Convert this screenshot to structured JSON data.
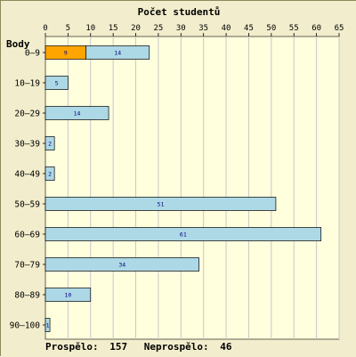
{
  "chart_data": {
    "type": "bar",
    "orientation": "horizontal",
    "stacked": true,
    "title": "Počet studentů",
    "ylabel": "Body",
    "xlabel": "",
    "xlim": [
      0,
      65
    ],
    "xticks": [
      0,
      5,
      10,
      15,
      20,
      25,
      30,
      35,
      40,
      45,
      50,
      55,
      60,
      65
    ],
    "grid": true,
    "categories": [
      "0–9",
      "10–19",
      "20–29",
      "30–39",
      "40–49",
      "50–59",
      "60–69",
      "70–79",
      "80–89",
      "90–100"
    ],
    "series": [
      {
        "values": [
          9,
          0,
          0,
          0,
          0,
          0,
          0,
          0,
          0,
          0
        ],
        "labels": [
          "9",
          "",
          "",
          "",
          "",
          "",
          "",
          "",
          "",
          ""
        ]
      },
      {
        "values": [
          14,
          5,
          14,
          2,
          2,
          51,
          61,
          34,
          10,
          1
        ],
        "labels": [
          "14",
          "5",
          "14",
          "2",
          "2",
          "51",
          "61",
          "34",
          "10",
          "1"
        ]
      }
    ],
    "colors": {
      "background": "#ffffdd",
      "frame": "#f2edcc",
      "grid": "#c8c8c8",
      "bar_fail": "#ffa500",
      "bar_pass": "#add8e6",
      "bar_border": "#000000",
      "bar_label": "#000080"
    }
  },
  "footer": {
    "passed_label": "Prospělo:",
    "passed_value": "157",
    "failed_label": "Neprospělo:",
    "failed_value": "46"
  }
}
